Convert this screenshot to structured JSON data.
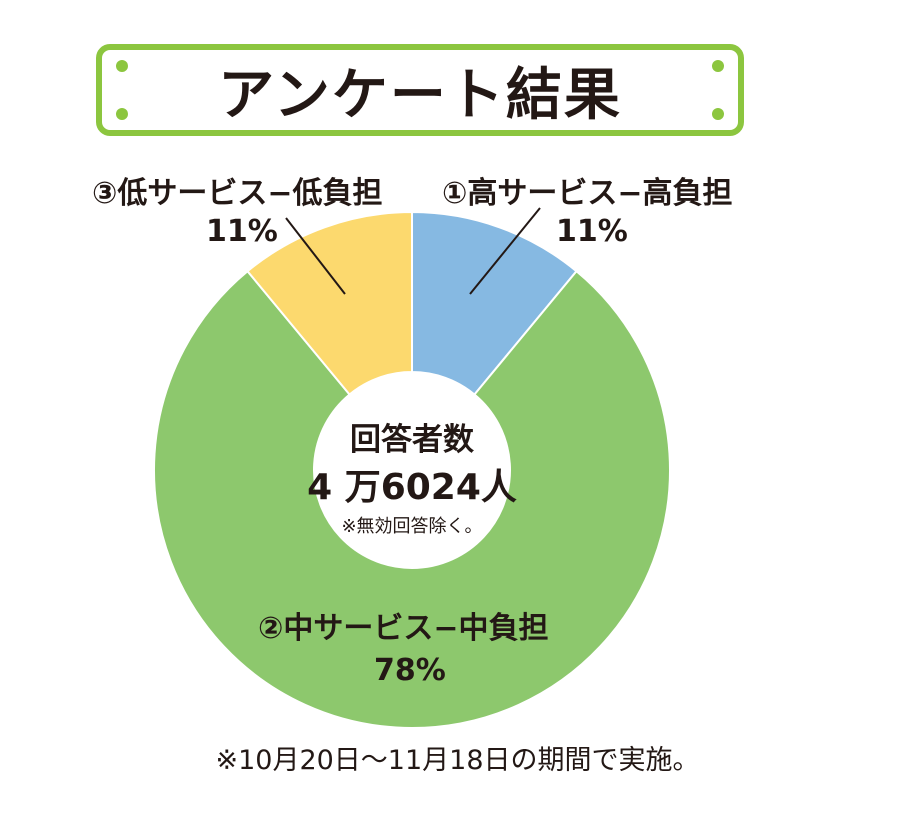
{
  "header": {
    "title": "アンケート結果"
  },
  "chart_data": {
    "type": "pie",
    "style": "donut",
    "categories": [
      "①高サービス−高負担",
      "②中サービス−中負担",
      "③低サービス−低負担"
    ],
    "values": [
      11,
      78,
      11
    ],
    "value_labels": [
      "11%",
      "78%",
      "11%"
    ],
    "colors": [
      "#86b9e2",
      "#8dc86d",
      "#fcd96e"
    ],
    "start": "12 o'clock, clockwise"
  },
  "center": {
    "title": "回答者数",
    "value": "4 万6024人",
    "note": "※無効回答除く。"
  },
  "footnote": "※10月20日～11月18日の期間で実施。",
  "colors": {
    "frame": "#8cc63f",
    "text": "#231815"
  }
}
